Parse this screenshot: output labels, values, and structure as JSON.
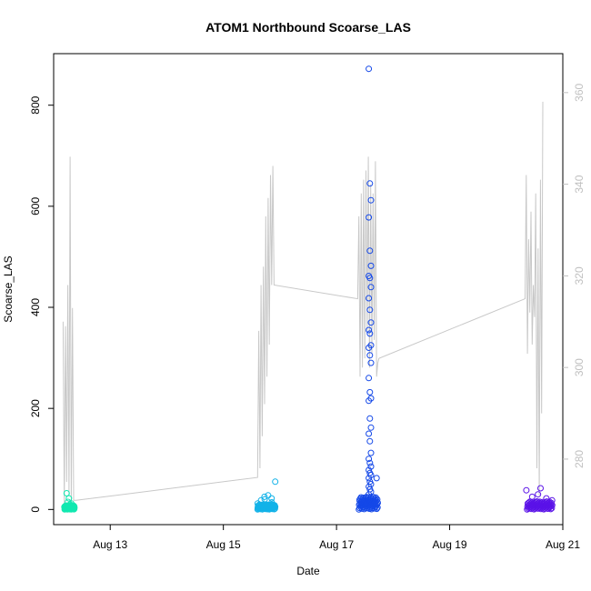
{
  "chart_data": {
    "type": "scatter",
    "title": "ATOM1 Northbound Scoarse_LAS",
    "xlabel": "Date",
    "ylabel": "Scoarse_LAS",
    "xlim": [
      "2017-08-12 00:00",
      "2017-08-21 00:00"
    ],
    "ylim": [
      -30,
      902
    ],
    "y2lim": [
      265.7,
      368.5
    ],
    "x_ticks": [
      {
        "label": "Aug 13",
        "x": "2017-08-13 00:00"
      },
      {
        "label": "Aug 15",
        "x": "2017-08-15 00:00"
      },
      {
        "label": "Aug 17",
        "x": "2017-08-17 00:00"
      },
      {
        "label": "Aug 19",
        "x": "2017-08-19 00:00"
      },
      {
        "label": "Aug 21",
        "x": "2017-08-21 00:00"
      }
    ],
    "y_ticks": [
      0,
      200,
      400,
      600,
      800
    ],
    "y2_ticks": [
      280,
      300,
      320,
      340,
      360
    ],
    "colors": {
      "axis": "#000000",
      "secondary_axis": "#c0c0c0",
      "secondary_line": "#c8c8c8"
    },
    "series": [
      {
        "color": "#11e8b0",
        "x": [
          "2017-08-12 05:00",
          "2017-08-12 05:30",
          "2017-08-12 06:00",
          "2017-08-12 06:30",
          "2017-08-12 07:00",
          "2017-08-12 07:30",
          "2017-08-12 08:00",
          "2017-08-12 08:30"
        ],
        "y": [
          5,
          32,
          22,
          15,
          10,
          8,
          12,
          3
        ],
        "floor_band": {
          "x_start": "2017-08-12 04:40",
          "x_end": "2017-08-12 08:50",
          "y_max": 8
        }
      },
      {
        "color": "#12b2e8",
        "x": [
          "2017-08-15 15:00",
          "2017-08-15 16:00",
          "2017-08-15 17:00",
          "2017-08-15 18:00",
          "2017-08-15 19:00",
          "2017-08-15 20:00",
          "2017-08-15 21:00",
          "2017-08-15 22:00"
        ],
        "y": [
          12,
          18,
          25,
          20,
          28,
          22,
          14,
          55
        ],
        "floor_band": {
          "x_start": "2017-08-15 14:30",
          "x_end": "2017-08-15 22:00",
          "y_max": 10
        }
      },
      {
        "color": "#1448e8",
        "x": [
          "2017-08-17 14:10",
          "2017-08-17 14:10",
          "2017-08-17 14:10",
          "2017-08-17 14:10",
          "2017-08-17 14:10",
          "2017-08-17 14:10",
          "2017-08-17 14:10",
          "2017-08-17 14:10",
          "2017-08-17 14:10",
          "2017-08-17 14:10",
          "2017-08-17 14:10",
          "2017-08-17 14:10",
          "2017-08-17 14:10",
          "2017-08-17 14:10",
          "2017-08-17 14:10",
          "2017-08-17 14:10",
          "2017-08-17 14:10",
          "2017-08-17 14:10",
          "2017-08-17 14:10",
          "2017-08-17 14:10",
          "2017-08-17 14:10",
          "2017-08-17 14:10",
          "2017-08-17 14:10",
          "2017-08-17 14:10",
          "2017-08-17 14:10",
          "2017-08-17 14:10",
          "2017-08-17 14:10",
          "2017-08-17 14:10",
          "2017-08-17 14:10",
          "2017-08-17 14:10",
          "2017-08-17 14:10",
          "2017-08-17 14:10",
          "2017-08-17 14:10",
          "2017-08-17 14:10",
          "2017-08-17 14:10",
          "2017-08-17 14:10",
          "2017-08-17 14:10",
          "2017-08-17 14:10",
          "2017-08-17 14:10",
          "2017-08-17 14:10",
          "2017-08-17 17:00"
        ],
        "y": [
          872,
          645,
          612,
          578,
          512,
          482,
          462,
          458,
          440,
          418,
          395,
          370,
          355,
          348,
          325,
          320,
          305,
          290,
          260,
          232,
          220,
          215,
          180,
          162,
          150,
          135,
          112,
          100,
          92,
          85,
          78,
          72,
          68,
          62,
          55,
          50,
          45,
          40,
          35,
          30,
          62
        ],
        "floor_band": {
          "x_start": "2017-08-17 09:30",
          "x_end": "2017-08-17 17:30",
          "y_max": 25
        }
      },
      {
        "color": "#5a12e8",
        "x": [
          "2017-08-20 09:00",
          "2017-08-20 11:00",
          "2017-08-20 13:00",
          "2017-08-20 15:00",
          "2017-08-20 17:00",
          "2017-08-20 19:00"
        ],
        "y": [
          38,
          25,
          30,
          42,
          22,
          18
        ],
        "floor_band": {
          "x_start": "2017-08-20 08:50",
          "x_end": "2017-08-20 19:30",
          "y_max": 16
        }
      }
    ],
    "secondary_line": {
      "x": [
        "2017-08-12 04:00",
        "2017-08-12 04:30",
        "2017-08-12 05:00",
        "2017-08-12 05:30",
        "2017-08-12 06:00",
        "2017-08-12 06:30",
        "2017-08-12 07:00",
        "2017-08-12 07:30",
        "2017-08-12 08:00",
        "2017-08-12 08:30",
        "2017-08-12 09:00",
        "2017-08-12 09:30",
        "2017-08-15 14:30",
        "2017-08-15 15:00",
        "2017-08-15 15:30",
        "2017-08-15 16:00",
        "2017-08-15 16:30",
        "2017-08-15 17:00",
        "2017-08-15 17:30",
        "2017-08-15 18:00",
        "2017-08-15 18:30",
        "2017-08-15 19:00",
        "2017-08-15 19:30",
        "2017-08-15 20:00",
        "2017-08-15 20:30",
        "2017-08-15 21:00",
        "2017-08-15 21:30",
        "2017-08-17 09:00",
        "2017-08-17 09:30",
        "2017-08-17 10:00",
        "2017-08-17 10:30",
        "2017-08-17 11:00",
        "2017-08-17 11:30",
        "2017-08-17 12:00",
        "2017-08-17 12:30",
        "2017-08-17 13:00",
        "2017-08-17 13:30",
        "2017-08-17 14:00",
        "2017-08-17 14:30",
        "2017-08-17 15:00",
        "2017-08-17 15:30",
        "2017-08-17 16:00",
        "2017-08-17 16:30",
        "2017-08-17 17:00",
        "2017-08-17 17:30",
        "2017-08-17 18:00",
        "2017-08-20 08:00",
        "2017-08-20 08:30",
        "2017-08-20 09:00",
        "2017-08-20 09:30",
        "2017-08-20 10:00",
        "2017-08-20 10:30",
        "2017-08-20 11:00",
        "2017-08-20 11:30",
        "2017-08-20 12:00",
        "2017-08-20 12:30",
        "2017-08-20 13:00",
        "2017-08-20 13:30",
        "2017-08-20 14:00",
        "2017-08-20 14:30",
        "2017-08-20 15:00",
        "2017-08-20 15:30"
      ],
      "y": [
        310,
        270,
        309,
        275,
        318,
        272,
        346,
        270,
        313,
        271,
        271,
        271,
        276,
        308,
        278,
        318,
        285,
        322,
        292,
        333,
        298,
        337,
        305,
        342,
        318,
        344,
        318,
        315,
        333,
        298,
        338,
        300,
        341,
        302,
        343,
        308,
        346,
        300,
        340,
        303,
        338,
        306,
        345,
        298,
        301,
        302,
        315,
        342,
        303,
        328,
        312,
        334,
        305,
        318,
        311,
        338,
        278,
        326,
        272,
        341,
        290,
        358
      ]
    }
  }
}
